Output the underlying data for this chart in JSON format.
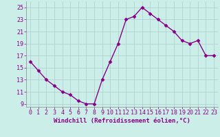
{
  "x": [
    0,
    1,
    2,
    3,
    4,
    5,
    6,
    7,
    8,
    9,
    10,
    11,
    12,
    13,
    14,
    15,
    16,
    17,
    18,
    19,
    20,
    21,
    22,
    23
  ],
  "y": [
    16,
    14.5,
    13,
    12,
    11,
    10.5,
    9.5,
    9,
    9,
    13,
    16,
    19,
    23,
    23.5,
    25,
    24,
    23,
    22,
    21,
    19.5,
    19,
    19.5,
    17,
    17
  ],
  "line_color": "#880088",
  "marker": "D",
  "marker_size": 2.5,
  "bg_color": "#cceee8",
  "grid_color": "#aacccc",
  "xlabel": "Windchill (Refroidissement éolien,°C)",
  "ylim": [
    8.5,
    26
  ],
  "xlim": [
    -0.5,
    23.5
  ],
  "yticks": [
    9,
    11,
    13,
    15,
    17,
    19,
    21,
    23,
    25
  ],
  "xticks": [
    0,
    1,
    2,
    3,
    4,
    5,
    6,
    7,
    8,
    9,
    10,
    11,
    12,
    13,
    14,
    15,
    16,
    17,
    18,
    19,
    20,
    21,
    22,
    23
  ],
  "tick_color": "#880088",
  "label_color": "#880088",
  "xlabel_fontsize": 6.5,
  "tick_fontsize": 6,
  "line_width": 1.0
}
